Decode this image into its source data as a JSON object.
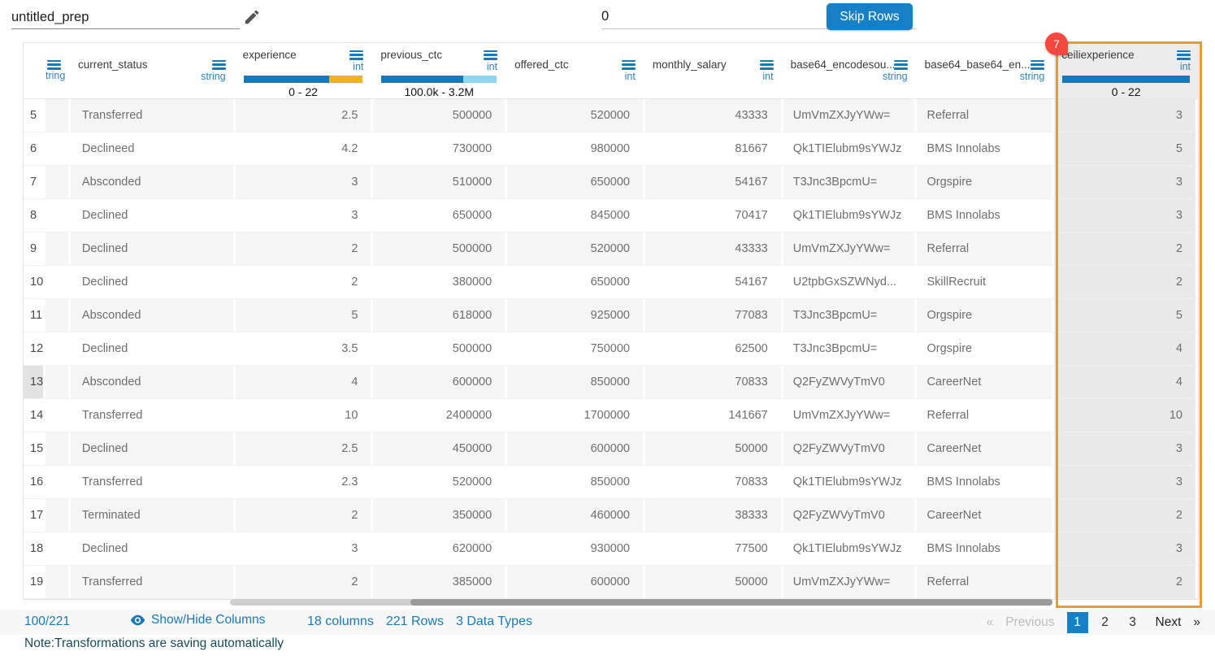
{
  "colors": {
    "accent_blue": "#1779b8",
    "button_blue": "#1580c5",
    "bar_yellow": "#f0b31c",
    "bar_lightblue": "#8fd4f0",
    "column_highlight_orange": "#e89a33",
    "badge_red": "#f5493f",
    "active_page_blue": "#1580c5"
  },
  "topbar": {
    "prep_name": "untitled_prep",
    "skip_rows_value": "0",
    "skip_rows_button": "Skip Rows"
  },
  "table": {
    "columns": [
      {
        "name": "",
        "type": ""
      },
      {
        "name": "",
        "type": "tring"
      },
      {
        "name": "current_status",
        "type": "string"
      },
      {
        "name": "experience",
        "type": "int",
        "range": "0 - 22",
        "bar": {
          "left_pct": 72,
          "left_color": "#1779b8",
          "right_color": "#f0b31c"
        }
      },
      {
        "name": "previous_ctc",
        "type": "int",
        "range": "100.0k - 3.2M",
        "bar": {
          "left_pct": 71,
          "left_color": "#1779b8",
          "right_color": "#8fd4f0"
        }
      },
      {
        "name": "offered_ctc",
        "type": "int"
      },
      {
        "name": "monthly_salary",
        "type": "int"
      },
      {
        "name": "base64_encodesou...",
        "type": "string"
      },
      {
        "name": "base64_base64_en...",
        "type": "string"
      },
      {
        "name": "ceiliexperience",
        "type": "int",
        "range": "0 - 22",
        "badge": "7",
        "bar": {
          "left_pct": 100,
          "left_color": "#1779b8"
        }
      }
    ],
    "highlighted_row": "13",
    "rows": [
      {
        "num": "5",
        "status": "Transferred",
        "experience": "2.5",
        "previous_ctc": "500000",
        "offered_ctc": "520000",
        "monthly_salary": "43333",
        "base64_source": "UmVmZXJyYWw=",
        "base64_decoded": "Referral",
        "ceiliexperience": "3"
      },
      {
        "num": "6",
        "status": "Declineed",
        "experience": "4.2",
        "previous_ctc": "730000",
        "offered_ctc": "980000",
        "monthly_salary": "81667",
        "base64_source": "Qk1TIElubm9sYWJz",
        "base64_decoded": "BMS Innolabs",
        "ceiliexperience": "5"
      },
      {
        "num": "7",
        "status": "Absconded",
        "experience": "3",
        "previous_ctc": "510000",
        "offered_ctc": "650000",
        "monthly_salary": "54167",
        "base64_source": "T3Jnc3BpcmU=",
        "base64_decoded": "Orgspire",
        "ceiliexperience": "3"
      },
      {
        "num": "8",
        "status": "Declined",
        "experience": "3",
        "previous_ctc": "650000",
        "offered_ctc": "845000",
        "monthly_salary": "70417",
        "base64_source": "Qk1TIElubm9sYWJz",
        "base64_decoded": "BMS Innolabs",
        "ceiliexperience": "3"
      },
      {
        "num": "9",
        "status": "Declined",
        "experience": "2",
        "previous_ctc": "500000",
        "offered_ctc": "520000",
        "monthly_salary": "43333",
        "base64_source": "UmVmZXJyYWw=",
        "base64_decoded": "Referral",
        "ceiliexperience": "2"
      },
      {
        "num": "10",
        "status": "Declined",
        "experience": "2",
        "previous_ctc": "380000",
        "offered_ctc": "650000",
        "monthly_salary": "54167",
        "base64_source": "U2tpbGxSZWNyd...",
        "base64_decoded": "SkillRecruit",
        "ceiliexperience": "2"
      },
      {
        "num": "11",
        "status": "Absconded",
        "experience": "5",
        "previous_ctc": "618000",
        "offered_ctc": "925000",
        "monthly_salary": "77083",
        "base64_source": "T3Jnc3BpcmU=",
        "base64_decoded": "Orgspire",
        "ceiliexperience": "5"
      },
      {
        "num": "12",
        "status": "Declined",
        "experience": "3.5",
        "previous_ctc": "500000",
        "offered_ctc": "750000",
        "monthly_salary": "62500",
        "base64_source": "T3Jnc3BpcmU=",
        "base64_decoded": "Orgspire",
        "ceiliexperience": "4"
      },
      {
        "num": "13",
        "status": "Absconded",
        "experience": "4",
        "previous_ctc": "600000",
        "offered_ctc": "850000",
        "monthly_salary": "70833",
        "base64_source": "Q2FyZWVyTmV0",
        "base64_decoded": "CareerNet",
        "ceiliexperience": "4"
      },
      {
        "num": "14",
        "status": "Transferred",
        "experience": "10",
        "previous_ctc": "2400000",
        "offered_ctc": "1700000",
        "monthly_salary": "141667",
        "base64_source": "UmVmZXJyYWw=",
        "base64_decoded": "Referral",
        "ceiliexperience": "10"
      },
      {
        "num": "15",
        "status": "Declined",
        "experience": "2.5",
        "previous_ctc": "450000",
        "offered_ctc": "600000",
        "monthly_salary": "50000",
        "base64_source": "Q2FyZWVyTmV0",
        "base64_decoded": "CareerNet",
        "ceiliexperience": "3"
      },
      {
        "num": "16",
        "status": "Transferred",
        "experience": "2.3",
        "previous_ctc": "520000",
        "offered_ctc": "850000",
        "monthly_salary": "70833",
        "base64_source": "Qk1TIElubm9sYWJz",
        "base64_decoded": "BMS Innolabs",
        "ceiliexperience": "3"
      },
      {
        "num": "17",
        "status": "Terminated",
        "experience": "2",
        "previous_ctc": "350000",
        "offered_ctc": "460000",
        "monthly_salary": "38333",
        "base64_source": "Q2FyZWVyTmV0",
        "base64_decoded": "CareerNet",
        "ceiliexperience": "2"
      },
      {
        "num": "18",
        "status": "Declined",
        "experience": "3",
        "previous_ctc": "620000",
        "offered_ctc": "930000",
        "monthly_salary": "77500",
        "base64_source": "Qk1TIElubm9sYWJz",
        "base64_decoded": "BMS Innolabs",
        "ceiliexperience": "3"
      },
      {
        "num": "19",
        "status": "Transferred",
        "experience": "2",
        "previous_ctc": "385000",
        "offered_ctc": "600000",
        "monthly_salary": "50000",
        "base64_source": "UmVmZXJyYWw=",
        "base64_decoded": "Referral",
        "ceiliexperience": "2"
      }
    ]
  },
  "footer": {
    "page_fraction": "100/221",
    "show_hide_label": "Show/Hide Columns",
    "columns_count": "18 columns",
    "rows_count": "221 Rows",
    "data_types": "3 Data Types",
    "pagination": {
      "prev_arrow": "«",
      "previous": "Previous",
      "pages": [
        "1",
        "2",
        "3"
      ],
      "active_page": "1",
      "next": "Next",
      "next_arrow": "»"
    }
  },
  "note": "Note:Transformations are saving automatically"
}
